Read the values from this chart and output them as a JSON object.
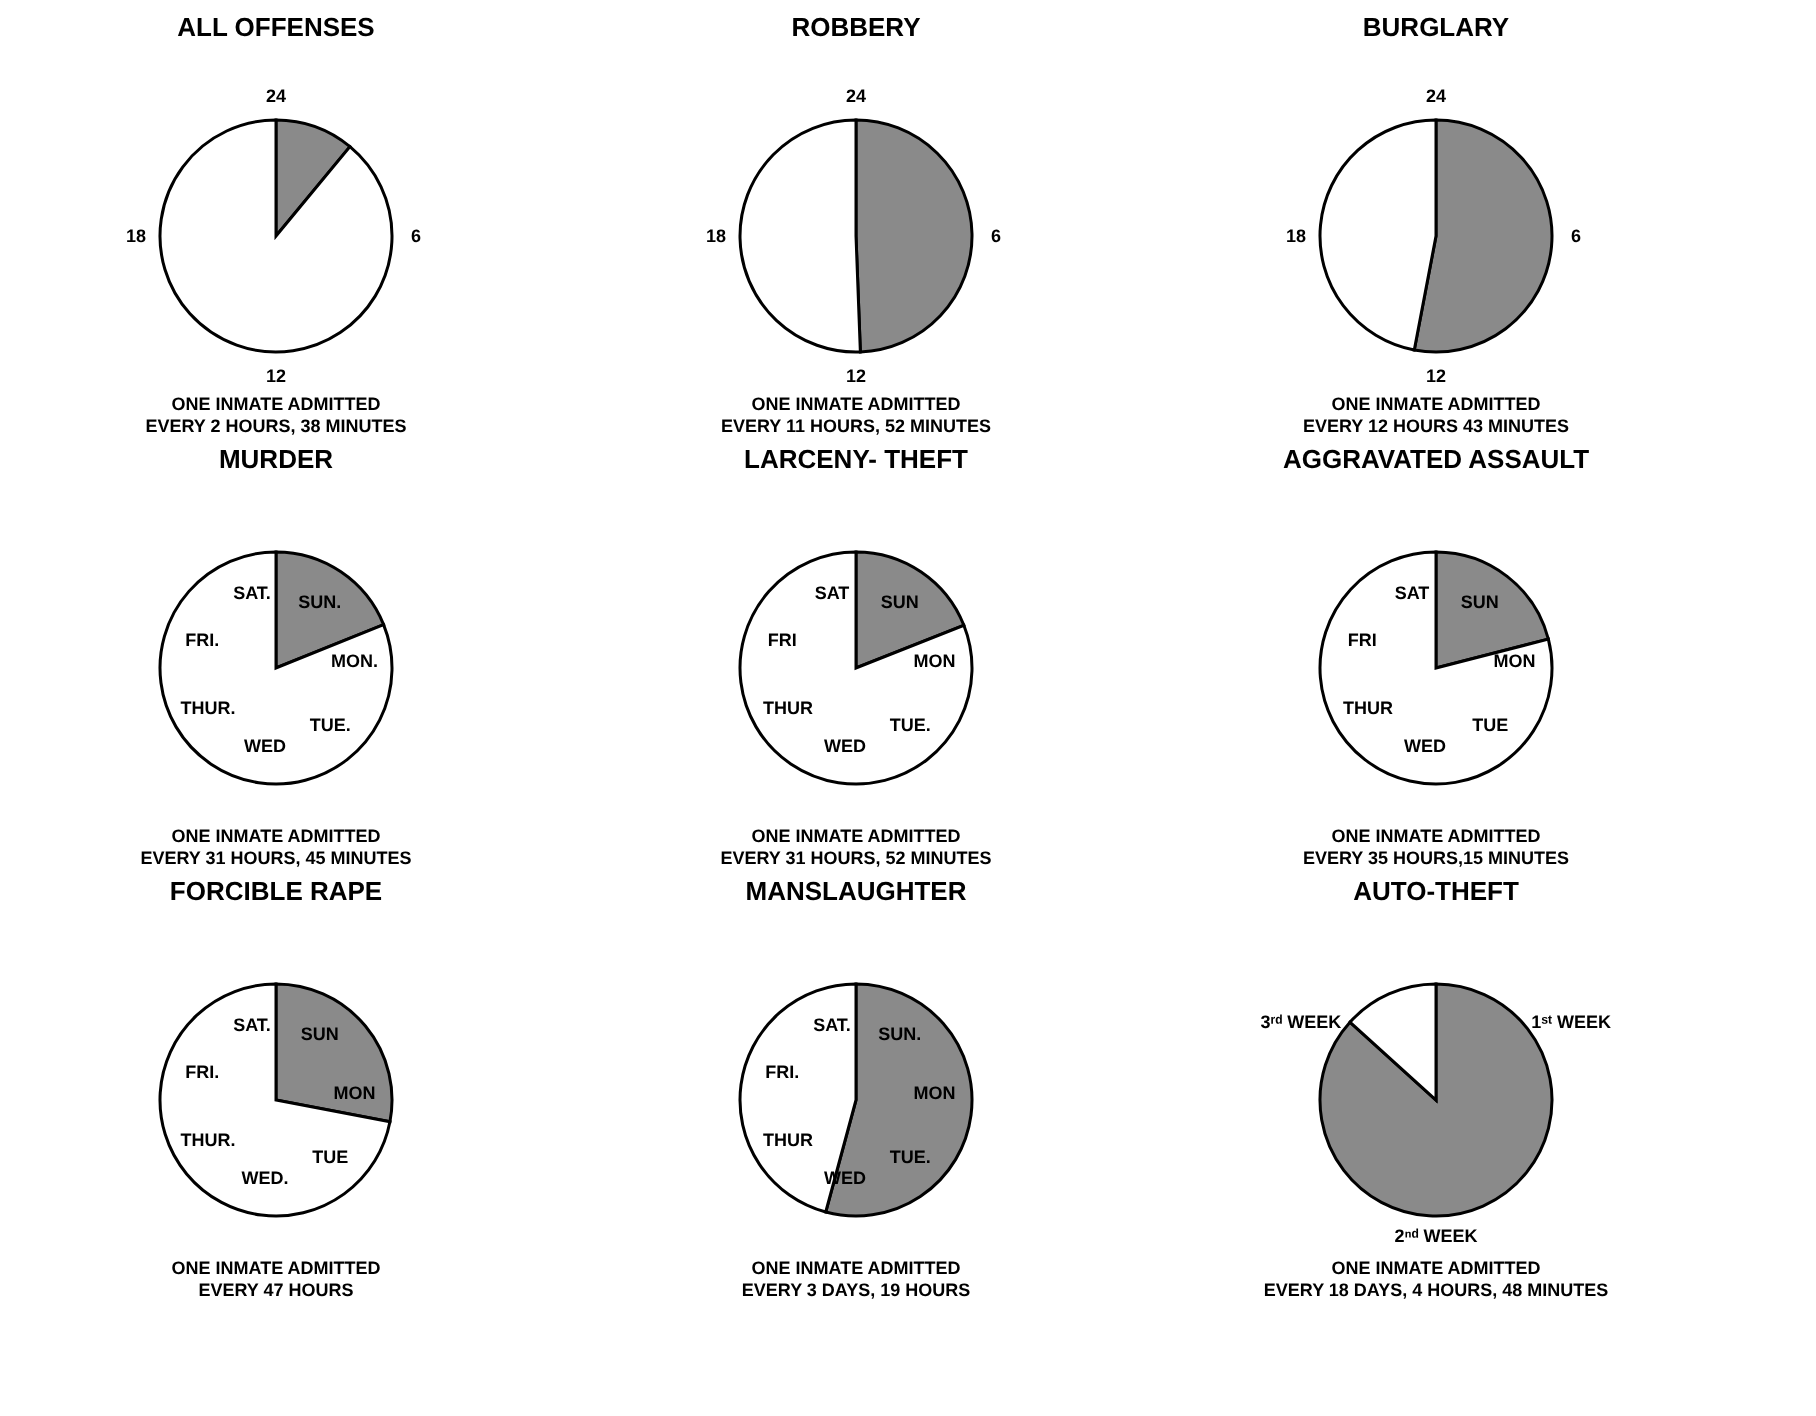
{
  "chart_data": [
    {
      "type": "pie",
      "title": "ALL OFFENSES",
      "categories": [
        null,
        null
      ],
      "values": [
        11,
        89
      ],
      "colors": [
        "#8a8a8a",
        "#ffffff"
      ],
      "annotations": [
        "24",
        "6",
        "12",
        "18",
        "ONE INMATE ADMITTED",
        "EVERY 2 HOURS, 38 MINUTES"
      ]
    },
    {
      "type": "pie",
      "title": "ROBBERY",
      "categories": [
        null,
        null
      ],
      "values": [
        49.4,
        50.6
      ],
      "colors": [
        "#8a8a8a",
        "#ffffff"
      ],
      "annotations": [
        "24",
        "6",
        "12",
        "18",
        "ONE INMATE ADMITTED",
        "EVERY 11 HOURS, 52 MINUTES"
      ]
    },
    {
      "type": "pie",
      "title": "BURGLARY",
      "categories": [
        null,
        null
      ],
      "values": [
        53,
        47
      ],
      "colors": [
        "#8a8a8a",
        "#ffffff"
      ],
      "annotations": [
        "24",
        "6",
        "12",
        "18",
        "ONE INMATE ADMITTED",
        "EVERY 12 HOURS 43 MINUTES"
      ]
    },
    {
      "type": "pie",
      "title": "MURDER",
      "categories": [
        null,
        null
      ],
      "values": [
        18.9,
        81.1
      ],
      "colors": [
        "#8a8a8a",
        "#ffffff"
      ],
      "annotations": [
        "SUN.",
        "MON.",
        "TUE.",
        "WED",
        "THUR.",
        "FRI.",
        "SAT.",
        "ONE INMATE ADMITTED",
        "EVERY 31 HOURS, 45 MINUTES"
      ]
    },
    {
      "type": "pie",
      "title": "LARCENY- THEFT",
      "categories": [
        null,
        null
      ],
      "values": [
        19,
        81
      ],
      "colors": [
        "#8a8a8a",
        "#ffffff"
      ],
      "annotations": [
        "SUN",
        "MON",
        "TUE.",
        "WED",
        "THUR",
        "FRI",
        "SAT",
        "ONE INMATE ADMITTED",
        "EVERY 31 HOURS, 52 MINUTES"
      ]
    },
    {
      "type": "pie",
      "title": "AGGRAVATED ASSAULT",
      "categories": [
        null,
        null
      ],
      "values": [
        21,
        79
      ],
      "colors": [
        "#8a8a8a",
        "#ffffff"
      ],
      "annotations": [
        "SUN",
        "MON",
        "TUE",
        "WED",
        "THUR",
        "FRI",
        "SAT",
        "ONE INMATE ADMITTED",
        "EVERY 35 HOURS,15 MINUTES"
      ]
    },
    {
      "type": "pie",
      "title": "FORCIBLE RAPE",
      "categories": [
        null,
        null
      ],
      "values": [
        28,
        72
      ],
      "colors": [
        "#8a8a8a",
        "#ffffff"
      ],
      "annotations": [
        "SUN",
        "MON",
        "TUE",
        "WED.",
        "THUR.",
        "FRI.",
        "SAT.",
        "ONE INMATE ADMITTED",
        "EVERY 47 HOURS"
      ]
    },
    {
      "type": "pie",
      "title": "MANSLAUGHTER",
      "categories": [
        null,
        null
      ],
      "values": [
        54.2,
        45.8
      ],
      "colors": [
        "#8a8a8a",
        "#ffffff"
      ],
      "annotations": [
        "SUN.",
        "MON",
        "TUE.",
        "WED",
        "THUR",
        "FRI.",
        "SAT.",
        "ONE INMATE ADMITTED",
        "EVERY 3 DAYS, 19 HOURS"
      ]
    },
    {
      "type": "pie",
      "title": "AUTO-THEFT",
      "categories": [
        null,
        null
      ],
      "values": [
        86.7,
        13.3
      ],
      "colors": [
        "#8a8a8a",
        "#ffffff"
      ],
      "annotations": [
        "1ˢᵗ WEEK",
        "2ⁿᵈ WEEK",
        "3ʳᵈ WEEK",
        "ONE INMATE ADMITTED",
        "EVERY 18 DAYS, 4 HOURS, 48 MINUTES"
      ]
    }
  ]
}
